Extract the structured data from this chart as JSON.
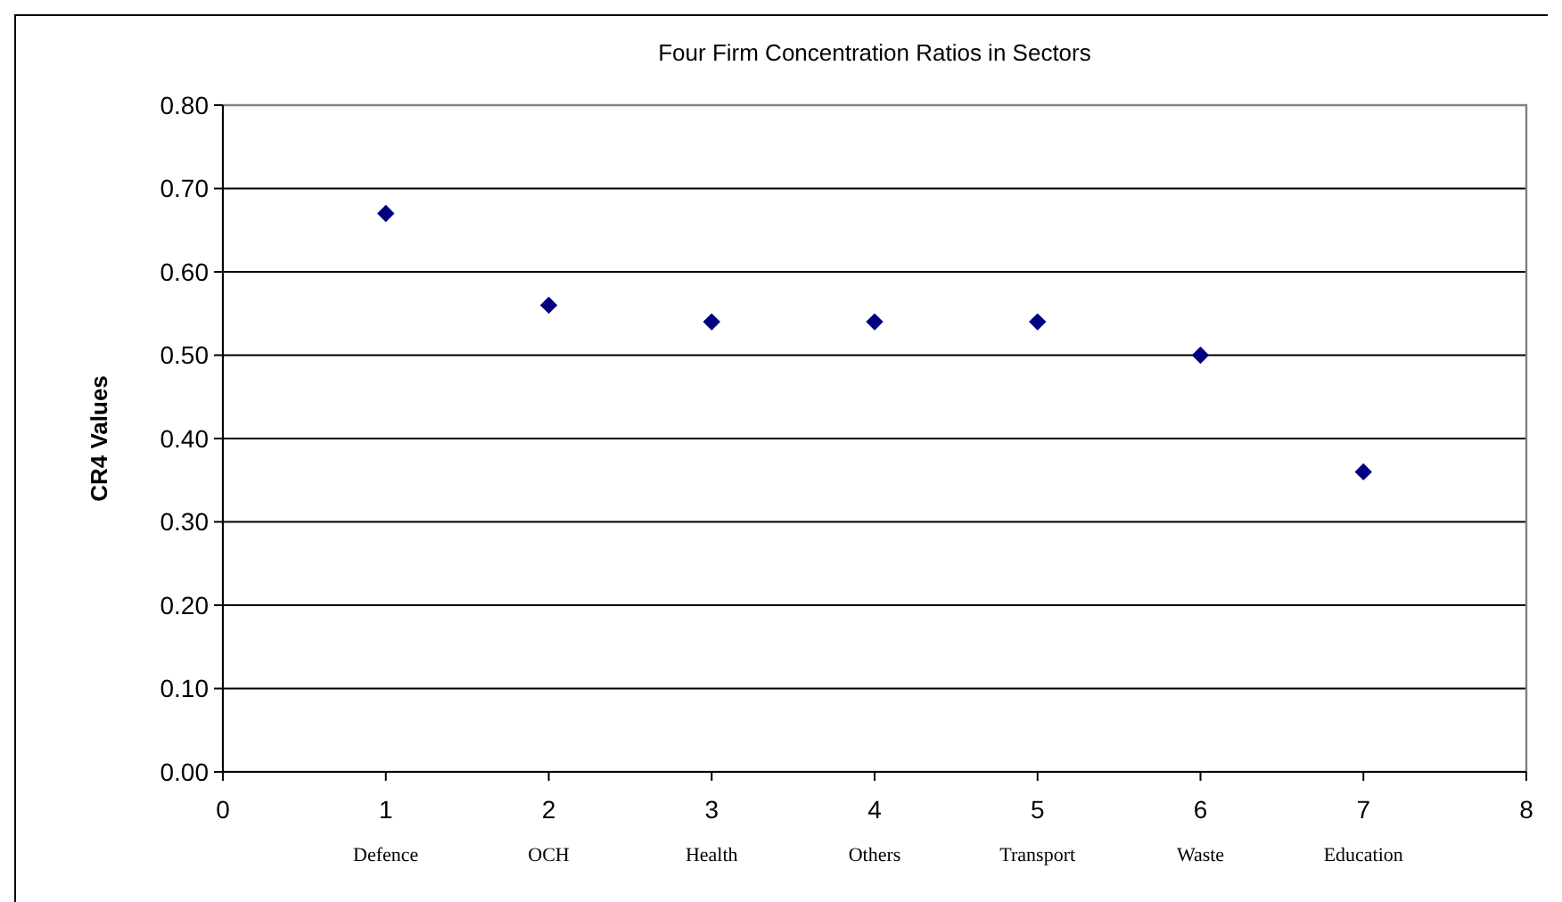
{
  "chart_data": {
    "type": "scatter",
    "title": "Four Firm Concentration Ratios in Sectors",
    "ylabel": "CR4 Values",
    "x": [
      1,
      2,
      3,
      4,
      5,
      6,
      7
    ],
    "series": [
      {
        "color": "#000080",
        "values": [
          0.67,
          0.56,
          0.54,
          0.54,
          0.54,
          0.5,
          0.36
        ]
      }
    ],
    "xlim": [
      0,
      8
    ],
    "xticks": [
      0,
      1,
      2,
      3,
      4,
      5,
      6,
      7,
      8
    ],
    "ylim": [
      0,
      0.8
    ],
    "yticks": [
      {
        "value": 0,
        "label": "0.00"
      },
      {
        "value": 0.1,
        "label": "0.10"
      },
      {
        "value": 0.2,
        "label": "0.20"
      },
      {
        "value": 0.3,
        "label": "0.30"
      },
      {
        "value": 0.4,
        "label": "0.40"
      },
      {
        "value": 0.5,
        "label": "0.50"
      },
      {
        "value": 0.6,
        "label": "0.60"
      },
      {
        "value": 0.7,
        "label": "0.70"
      },
      {
        "value": 0.8,
        "label": "0.80"
      }
    ],
    "grid": "y",
    "marker": "diamond",
    "annotations": [
      "Defence",
      "OCH",
      "Health",
      "Others",
      "Transport",
      "Waste",
      "Education"
    ]
  }
}
